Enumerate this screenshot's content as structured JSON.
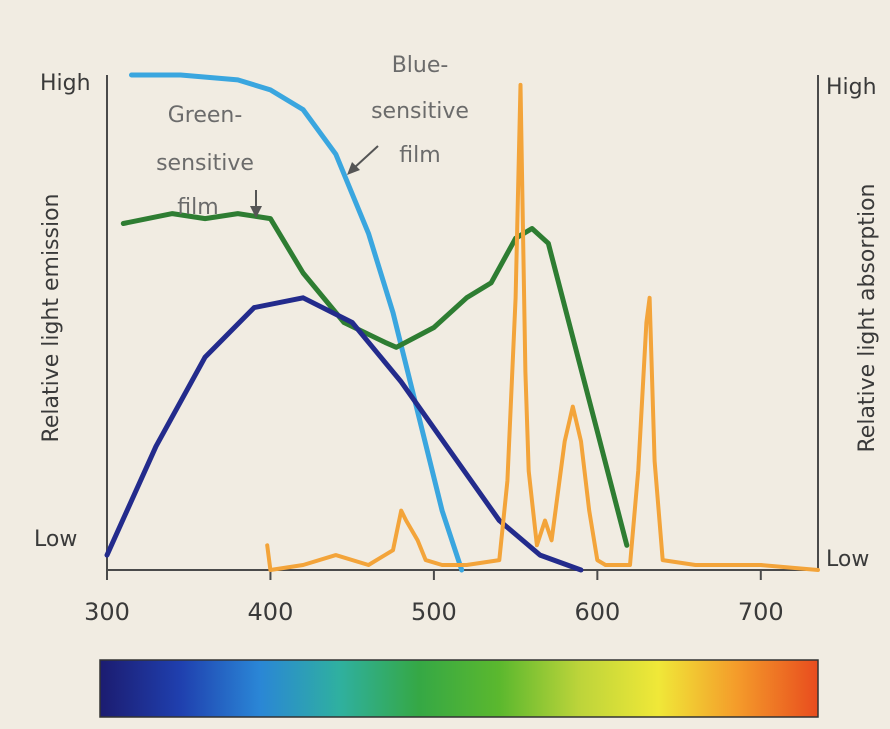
{
  "chart_data": {
    "type": "line",
    "title": "",
    "xlabel": "",
    "ylabel_left": "Relative light emission",
    "ylabel_right": "Relative light absorption",
    "left_axis_labels": {
      "high": "High",
      "low": "Low"
    },
    "right_axis_labels": {
      "high": "High",
      "low": "Low"
    },
    "x_ticks": [
      300,
      400,
      500,
      600,
      700
    ],
    "xlim": [
      300,
      735
    ],
    "ylim": [
      0,
      1
    ],
    "grid": false,
    "legend": "none",
    "annotations": [
      {
        "id": "green-film",
        "lines": [
          "Green-",
          "sensitive",
          "film"
        ],
        "series": "green-sensitive-film"
      },
      {
        "id": "blue-film",
        "lines": [
          "Blue-",
          "sensitive",
          "film"
        ],
        "series": "blue-sensitive-film"
      }
    ],
    "spectrum_bar": {
      "colors": [
        "#1c1c70",
        "#1f3fae",
        "#2a86d6",
        "#2fb0a0",
        "#35a845",
        "#5bb82e",
        "#bcd43a",
        "#f0e838",
        "#f49a2a",
        "#e84c1e"
      ]
    },
    "series": [
      {
        "key": "blue-sensitive-film",
        "color": "#3aa6df",
        "x": [
          315,
          345,
          380,
          400,
          420,
          440,
          460,
          475,
          490,
          505,
          517
        ],
        "y": [
          1.0,
          1.0,
          0.99,
          0.97,
          0.93,
          0.84,
          0.68,
          0.52,
          0.32,
          0.12,
          0.0
        ]
      },
      {
        "key": "green-sensitive-film",
        "color": "#2e7d32",
        "x": [
          310,
          340,
          360,
          380,
          400,
          420,
          445,
          470,
          477,
          500,
          520,
          535,
          550,
          560,
          570,
          585,
          600,
          618
        ],
        "y": [
          0.7,
          0.72,
          0.71,
          0.72,
          0.71,
          0.6,
          0.5,
          0.46,
          0.45,
          0.49,
          0.55,
          0.58,
          0.67,
          0.69,
          0.66,
          0.47,
          0.28,
          0.05
        ]
      },
      {
        "key": "emission-curve",
        "color": "#232b8c",
        "x": [
          300,
          330,
          360,
          390,
          420,
          450,
          480,
          510,
          540,
          565,
          590
        ],
        "y": [
          0.03,
          0.25,
          0.43,
          0.53,
          0.55,
          0.5,
          0.38,
          0.24,
          0.1,
          0.03,
          0.0
        ]
      },
      {
        "key": "phosphor-emission",
        "color": "#f3a43a",
        "x": [
          398,
          400,
          420,
          440,
          460,
          475,
          480,
          483,
          490,
          495,
          505,
          520,
          540,
          545,
          550,
          553,
          556,
          558,
          563,
          568,
          572,
          580,
          585,
          590,
          595,
          600,
          605,
          620,
          625,
          630,
          632,
          635,
          640,
          660,
          700,
          735
        ],
        "y": [
          0.05,
          0.0,
          0.01,
          0.03,
          0.01,
          0.04,
          0.12,
          0.1,
          0.06,
          0.02,
          0.01,
          0.01,
          0.02,
          0.18,
          0.55,
          0.98,
          0.4,
          0.2,
          0.05,
          0.1,
          0.06,
          0.26,
          0.33,
          0.26,
          0.12,
          0.02,
          0.01,
          0.01,
          0.2,
          0.5,
          0.55,
          0.22,
          0.02,
          0.01,
          0.01,
          0.0
        ]
      }
    ]
  }
}
